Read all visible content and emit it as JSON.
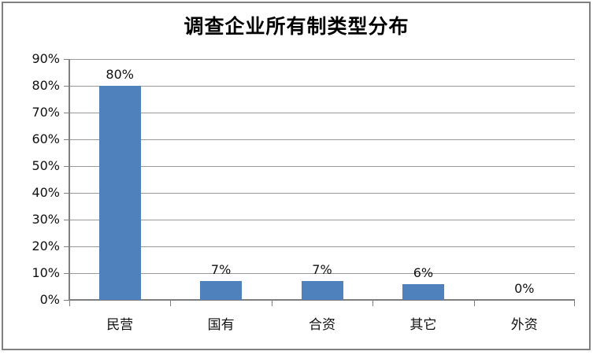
{
  "window": {
    "background_color": "#ffffff",
    "border_color": "#808080"
  },
  "chart_data": {
    "type": "bar",
    "title": "调查企业所有制类型分布",
    "categories": [
      "民营",
      "国有",
      "合资",
      "其它",
      "外资"
    ],
    "values": [
      80,
      7,
      7,
      6,
      0
    ],
    "value_labels": [
      "80%",
      "7%",
      "7%",
      "6%",
      "0%"
    ],
    "y_ticks": [
      "90%",
      "80%",
      "70%",
      "60%",
      "50%",
      "40%",
      "30%",
      "20%",
      "10%",
      "0%"
    ],
    "ylim": [
      0,
      90
    ],
    "y_tick_step": 10,
    "xlabel": "",
    "ylabel": "",
    "grid": true,
    "legend": "none",
    "data_labels": true,
    "bar_color": "#4f81bd",
    "gridline_color": "#999999",
    "axis_color": "#7f7f7f",
    "text_color": "#111111"
  }
}
